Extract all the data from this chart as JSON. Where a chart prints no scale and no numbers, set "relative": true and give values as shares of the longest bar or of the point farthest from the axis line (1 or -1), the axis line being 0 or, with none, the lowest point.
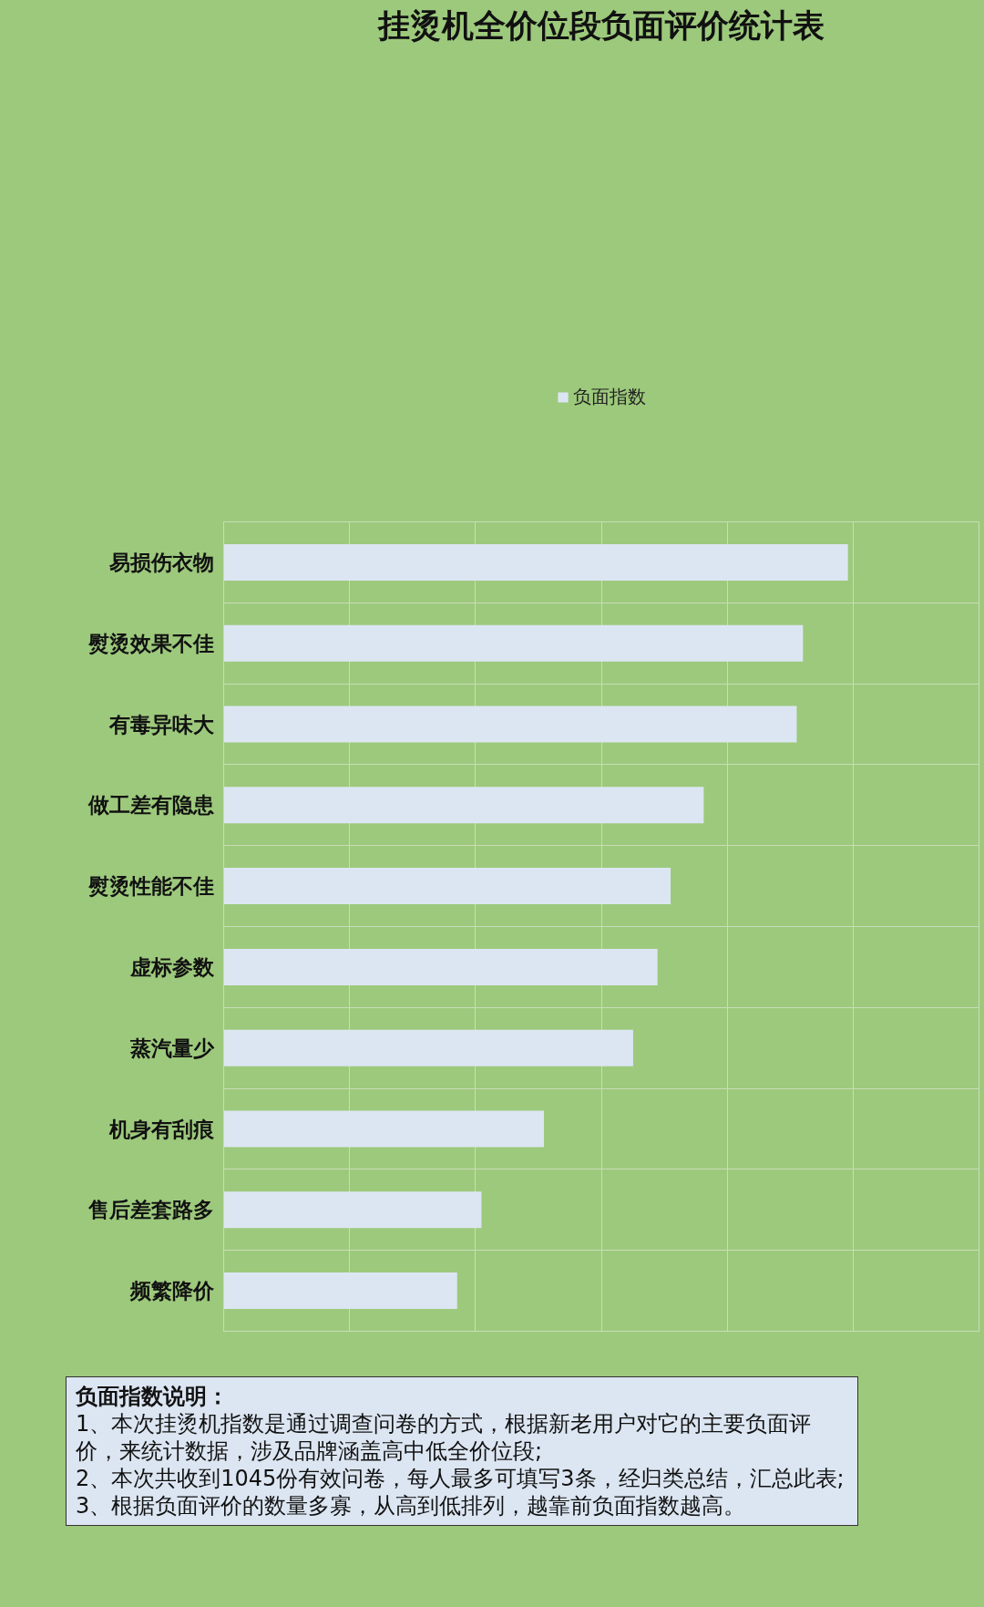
{
  "chart_data": {
    "type": "bar",
    "orientation": "horizontal",
    "relative": true,
    "title": "挂烫机全价位段负面评价统计表",
    "categories": [
      "易损伤衣物",
      "熨烫效果不佳",
      "有毒异味大",
      "做工差有隐患",
      "熨烫性能不佳",
      "虚标参数",
      "蒸汽量少",
      "机身有刮痕",
      "售后差套路多",
      "频繁降价"
    ],
    "series": [
      {
        "name": "负面指数",
        "color": "#dce6f2",
        "values": [
          1,
          0.928,
          0.918,
          0.769,
          0.716,
          0.695,
          0.656,
          0.513,
          0.413,
          0.374
        ]
      }
    ],
    "grid": true,
    "legend": "top",
    "annotations": [
      "负面指数说明：",
      "1、本次挂烫机指数是通过调查问卷的方式，根据新老用户对它的主要负面评价，来统计数据，涉及品牌涵盖高中低全价位段;",
      "2、本次共收到1045份有效问卷，每人最多可填写3条，经归类总结，汇总此表;",
      "3、根据负面评价的数量多寡，从高到低排列，越靠前负面指数越高。"
    ]
  }
}
